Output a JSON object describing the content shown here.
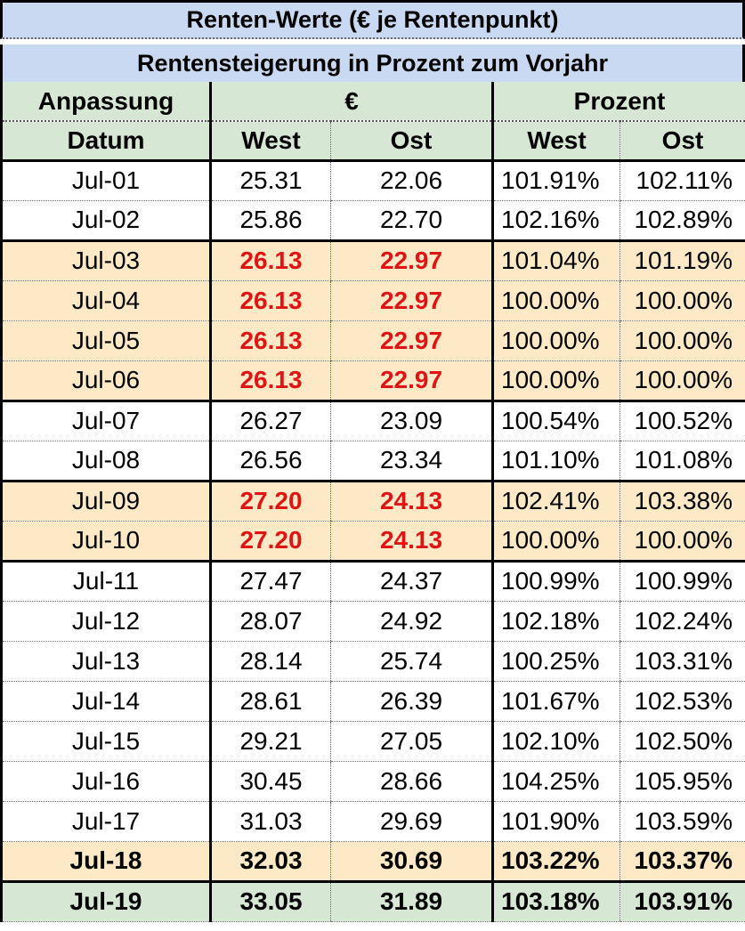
{
  "title": "Renten-Werte (€ je Rentenpunkt)",
  "subtitle": "Rentensteigerung in Prozent zum Vorjahr",
  "header": {
    "col1_top": "Anpassung",
    "col1_bottom": "Datum",
    "euro_group": "€",
    "percent_group": "Prozent",
    "west": "West",
    "ost": "Ost"
  },
  "rows": [
    {
      "date": "Jul-01",
      "euro_west": "25.31",
      "euro_ost": "22.06",
      "pct_west": "101.91%",
      "pct_ost": "102.11%",
      "style": "plain",
      "group_start": false
    },
    {
      "date": "Jul-02",
      "euro_west": "25.86",
      "euro_ost": "22.70",
      "pct_west": "102.16%",
      "pct_ost": "102.89%",
      "style": "plain",
      "group_start": false
    },
    {
      "date": "Jul-03",
      "euro_west": "26.13",
      "euro_ost": "22.97",
      "pct_west": "101.04%",
      "pct_ost": "101.19%",
      "style": "tan-red",
      "group_start": true
    },
    {
      "date": "Jul-04",
      "euro_west": "26.13",
      "euro_ost": "22.97",
      "pct_west": "100.00%",
      "pct_ost": "100.00%",
      "style": "tan-red",
      "group_start": false
    },
    {
      "date": "Jul-05",
      "euro_west": "26.13",
      "euro_ost": "22.97",
      "pct_west": "100.00%",
      "pct_ost": "100.00%",
      "style": "tan-red",
      "group_start": false
    },
    {
      "date": "Jul-06",
      "euro_west": "26.13",
      "euro_ost": "22.97",
      "pct_west": "100.00%",
      "pct_ost": "100.00%",
      "style": "tan-red",
      "group_start": false
    },
    {
      "date": "Jul-07",
      "euro_west": "26.27",
      "euro_ost": "23.09",
      "pct_west": "100.54%",
      "pct_ost": "100.52%",
      "style": "plain",
      "group_start": true
    },
    {
      "date": "Jul-08",
      "euro_west": "26.56",
      "euro_ost": "23.34",
      "pct_west": "101.10%",
      "pct_ost": "101.08%",
      "style": "plain",
      "group_start": false
    },
    {
      "date": "Jul-09",
      "euro_west": "27.20",
      "euro_ost": "24.13",
      "pct_west": "102.41%",
      "pct_ost": "103.38%",
      "style": "tan-red",
      "group_start": true
    },
    {
      "date": "Jul-10",
      "euro_west": "27.20",
      "euro_ost": "24.13",
      "pct_west": "100.00%",
      "pct_ost": "100.00%",
      "style": "tan-red",
      "group_start": false
    },
    {
      "date": "Jul-11",
      "euro_west": "27.47",
      "euro_ost": "24.37",
      "pct_west": "100.99%",
      "pct_ost": "100.99%",
      "style": "plain",
      "group_start": true
    },
    {
      "date": "Jul-12",
      "euro_west": "28.07",
      "euro_ost": "24.92",
      "pct_west": "102.18%",
      "pct_ost": "102.24%",
      "style": "plain",
      "group_start": false
    },
    {
      "date": "Jul-13",
      "euro_west": "28.14",
      "euro_ost": "25.74",
      "pct_west": "100.25%",
      "pct_ost": "103.31%",
      "style": "plain",
      "group_start": false
    },
    {
      "date": "Jul-14",
      "euro_west": "28.61",
      "euro_ost": "26.39",
      "pct_west": "101.67%",
      "pct_ost": "102.53%",
      "style": "plain",
      "group_start": false
    },
    {
      "date": "Jul-15",
      "euro_west": "29.21",
      "euro_ost": "27.05",
      "pct_west": "102.10%",
      "pct_ost": "102.50%",
      "style": "plain",
      "group_start": false
    },
    {
      "date": "Jul-16",
      "euro_west": "30.45",
      "euro_ost": "28.66",
      "pct_west": "104.25%",
      "pct_ost": "105.95%",
      "style": "plain",
      "group_start": false
    },
    {
      "date": "Jul-17",
      "euro_west": "31.03",
      "euro_ost": "29.69",
      "pct_west": "101.90%",
      "pct_ost": "103.59%",
      "style": "plain",
      "group_start": false
    },
    {
      "date": "Jul-18",
      "euro_west": "32.03",
      "euro_ost": "30.69",
      "pct_west": "103.22%",
      "pct_ost": "103.37%",
      "style": "tan-bold",
      "group_start": false
    },
    {
      "date": "Jul-19",
      "euro_west": "33.05",
      "euro_ost": "31.89",
      "pct_west": "103.18%",
      "pct_ost": "103.91%",
      "style": "green-bold",
      "group_start": true
    }
  ],
  "colors": {
    "title_band": "#c9d9f1",
    "header_band": "#d6e8d4",
    "highlight_row": "#fde9c6",
    "red_value": "#e01414"
  }
}
